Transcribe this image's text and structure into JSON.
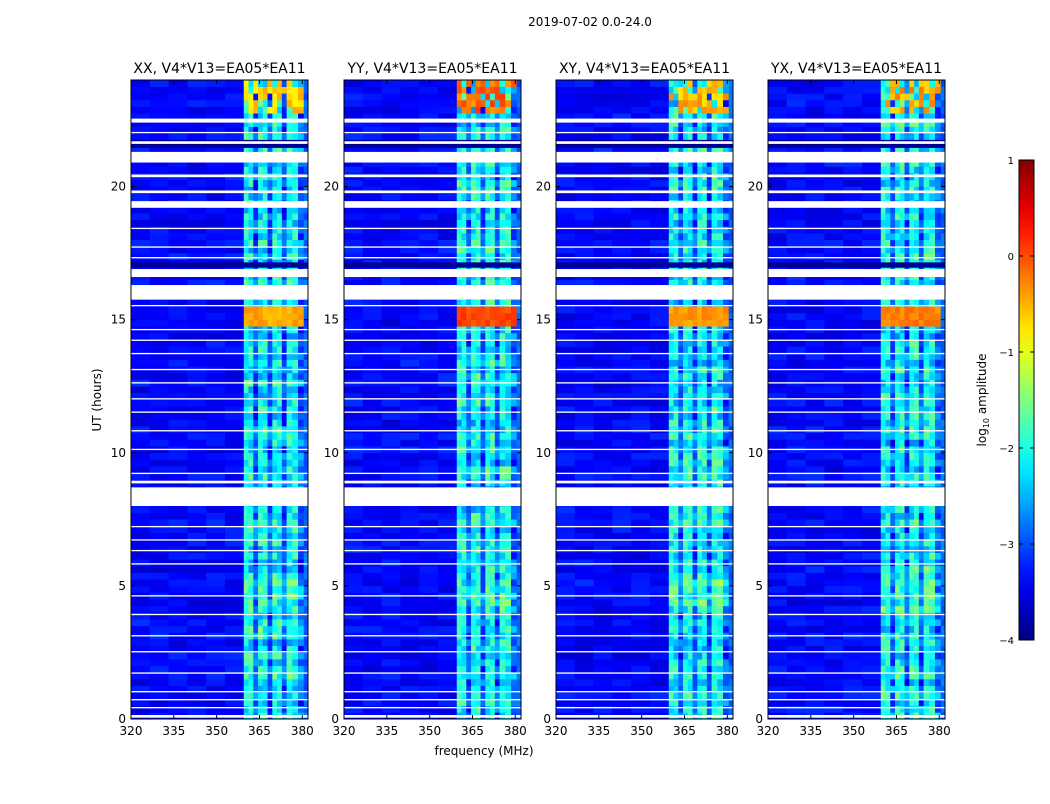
{
  "page_title": "2019-07-02 0.0-24.0",
  "chart_data": {
    "type": "heatmap",
    "shared": {
      "xlabel": "frequency (MHz)",
      "ylabel": "UT (hours)",
      "xlim": [
        320,
        382
      ],
      "ylim": [
        0,
        24
      ],
      "xticks": [
        320,
        335,
        350,
        365,
        380
      ],
      "yticks": [
        0,
        5,
        10,
        15,
        20
      ],
      "xtick_labels": [
        "320",
        "335",
        "350",
        "365",
        "380"
      ],
      "ytick_labels": [
        "0",
        "5",
        "10",
        "15",
        "20"
      ],
      "rfi_band_mhz": [
        359.5,
        380.5
      ],
      "rfi_subband_edges_mhz": [
        359.5,
        364.5,
        369.5,
        374.5,
        380.5
      ],
      "flagged_time_ranges_hours": [
        [
          0.05,
          0.15
        ],
        [
          0.4,
          0.45
        ],
        [
          0.7,
          0.75
        ],
        [
          1.0,
          1.05
        ],
        [
          1.7,
          1.75
        ],
        [
          2.5,
          2.55
        ],
        [
          3.1,
          3.15
        ],
        [
          3.9,
          3.95
        ],
        [
          4.6,
          4.65
        ],
        [
          5.8,
          5.85
        ],
        [
          6.3,
          6.35
        ],
        [
          6.7,
          6.75
        ],
        [
          7.2,
          7.25
        ],
        [
          8.0,
          8.7
        ],
        [
          8.85,
          8.95
        ],
        [
          9.2,
          9.25
        ],
        [
          10.1,
          10.15
        ],
        [
          10.8,
          10.85
        ],
        [
          11.5,
          11.55
        ],
        [
          12.0,
          12.05
        ],
        [
          12.6,
          12.65
        ],
        [
          13.1,
          13.15
        ],
        [
          13.7,
          13.75
        ],
        [
          14.2,
          14.25
        ],
        [
          14.6,
          14.65
        ],
        [
          15.5,
          15.55
        ],
        [
          15.75,
          16.3
        ],
        [
          16.6,
          16.9
        ],
        [
          17.3,
          17.35
        ],
        [
          17.7,
          17.75
        ],
        [
          18.4,
          18.45
        ],
        [
          19.2,
          19.45
        ],
        [
          19.75,
          19.85
        ],
        [
          20.35,
          20.45
        ],
        [
          20.9,
          21.3
        ],
        [
          21.6,
          21.7
        ],
        [
          22.0,
          22.05
        ],
        [
          22.4,
          22.55
        ]
      ],
      "dark_time_ranges_hours": [
        [
          21.45,
          21.75
        ],
        [
          16.95,
          17.15
        ]
      ]
    },
    "panels": [
      {
        "title": "XX, V4*V13=EA05*EA11",
        "band_peak_log10_amp": -0.3
      },
      {
        "title": "YY, V4*V13=EA05*EA11",
        "band_peak_log10_amp": 0.2
      },
      {
        "title": "XY, V4*V13=EA05*EA11",
        "band_peak_log10_amp": -0.2
      },
      {
        "title": "YX, V4*V13=EA05*EA11",
        "band_peak_log10_amp": -0.1
      }
    ],
    "colorbar": {
      "label": "log10 amplitude",
      "label_main": "log",
      "label_sub": "10",
      "label_rest": " amplitude",
      "range": [
        -4,
        1
      ],
      "ticks": [
        1,
        0,
        -1,
        -2,
        -3,
        -4
      ],
      "tick_labels": [
        "1",
        "0",
        "−1",
        "−2",
        "−3",
        "−4"
      ],
      "colormap": "jet"
    }
  }
}
